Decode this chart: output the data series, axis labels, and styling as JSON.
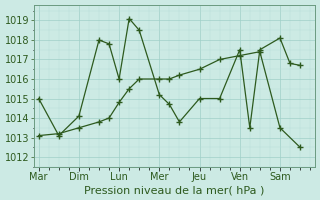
{
  "xlabel": "Pression niveau de la mer( hPa )",
  "background_color": "#cceae4",
  "line_color": "#2d5a1e",
  "ylim": [
    1011.5,
    1019.8
  ],
  "yticks": [
    1012,
    1013,
    1014,
    1015,
    1016,
    1017,
    1018,
    1019
  ],
  "day_labels": [
    "Mar",
    "Dim",
    "Lun",
    "Mer",
    "Jeu",
    "Ven",
    "Sam"
  ],
  "day_positions": [
    0,
    4,
    8,
    12,
    16,
    20,
    24
  ],
  "xlim": [
    -0.5,
    27.5
  ],
  "series1_x": [
    0,
    2,
    4,
    6,
    7,
    8,
    9,
    10,
    12,
    13,
    14,
    16,
    18,
    20,
    21,
    22,
    24,
    25,
    26
  ],
  "series1_y": [
    1015.0,
    1013.1,
    1014.1,
    1018.0,
    1017.8,
    1016.0,
    1019.1,
    1018.5,
    1015.2,
    1014.7,
    1013.8,
    1015.0,
    1015.0,
    1017.5,
    1013.5,
    1017.5,
    1018.1,
    1016.8,
    1016.7
  ],
  "series2_x": [
    0,
    2,
    4,
    6,
    7,
    8,
    9,
    10,
    12,
    13,
    14,
    16,
    18,
    20,
    22,
    24,
    26
  ],
  "series2_y": [
    1013.1,
    1013.2,
    1013.5,
    1013.8,
    1014.0,
    1014.8,
    1015.5,
    1016.0,
    1016.0,
    1016.0,
    1016.2,
    1016.5,
    1017.0,
    1017.2,
    1017.4,
    1013.5,
    1012.5
  ],
  "fontsize_label": 8,
  "fontsize_tick": 7
}
